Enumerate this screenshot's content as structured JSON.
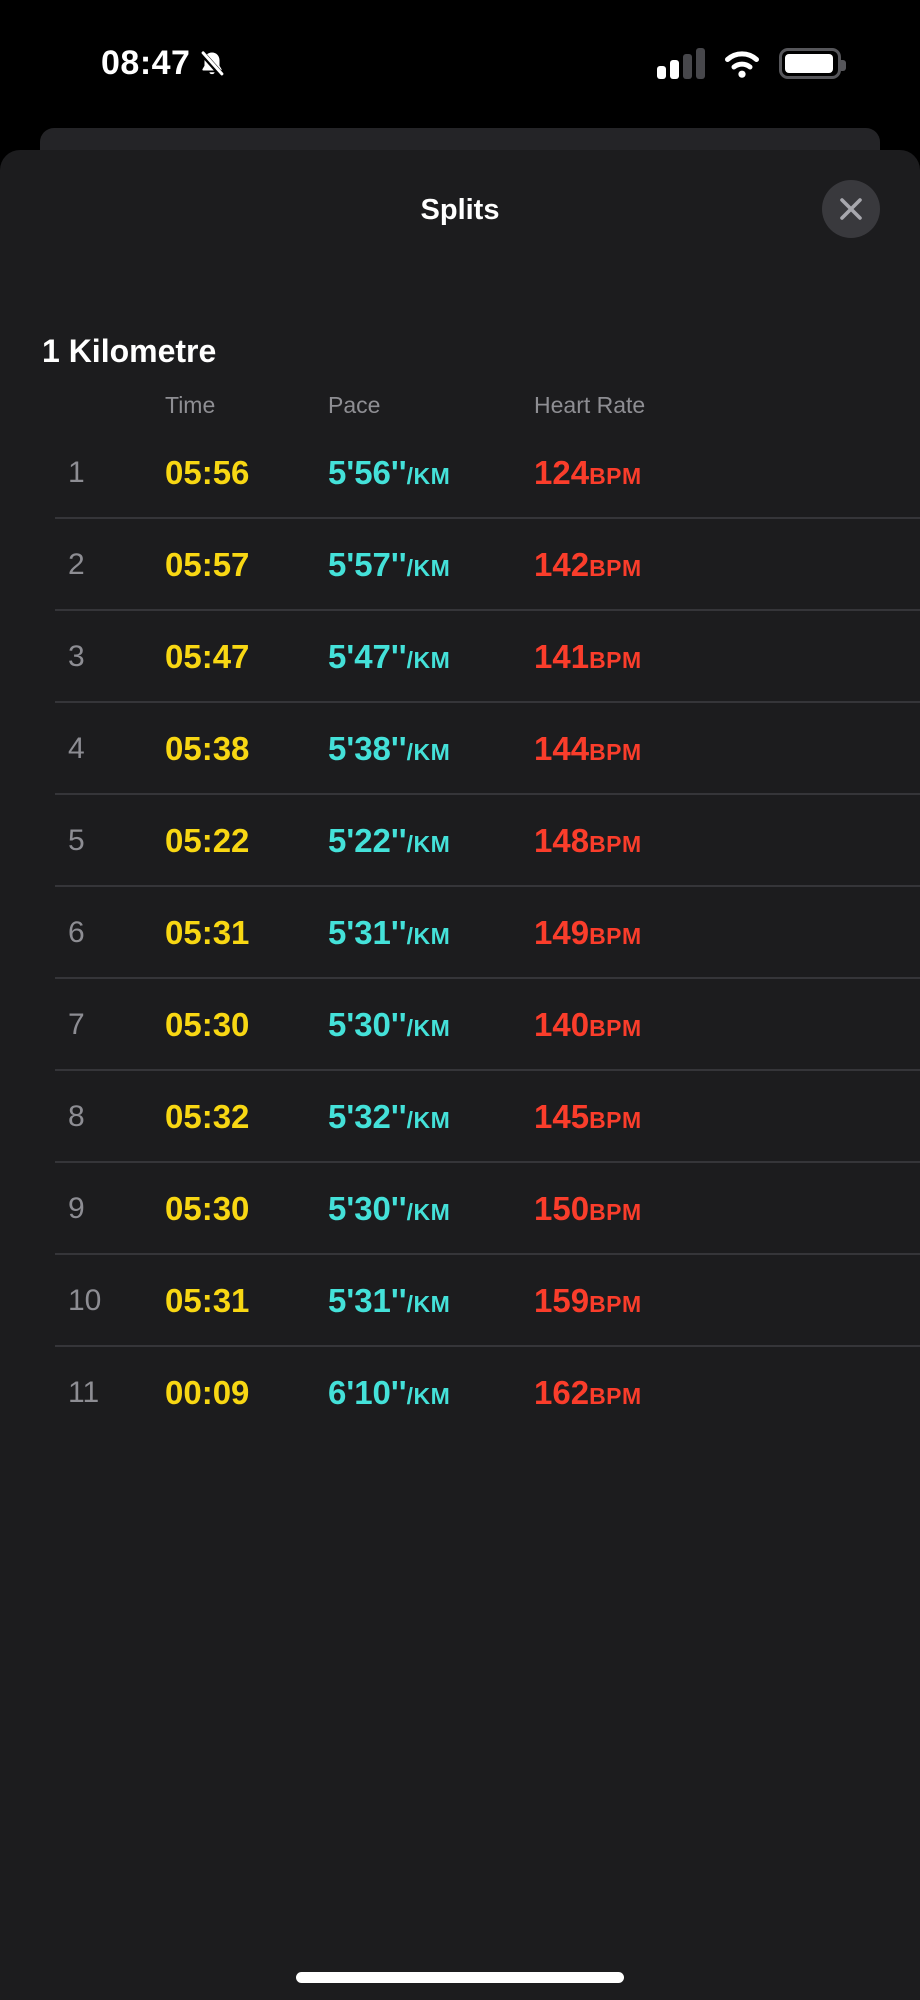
{
  "status_bar": {
    "time": "08:47",
    "notifications_silenced": true,
    "cellular_bars_filled": 2,
    "cellular_bars_total": 4,
    "wifi_strength": "full",
    "battery_fill_ratio": 0.86
  },
  "sheet": {
    "title": "Splits",
    "section_title": "1 Kilometre",
    "columns": [
      "Time",
      "Pace",
      "Heart Rate"
    ],
    "units": {
      "pace": "/KM",
      "heart_rate": "BPM"
    },
    "splits": [
      {
        "index": "1",
        "time": "05:56",
        "pace": "5'56''",
        "heart_rate": "124"
      },
      {
        "index": "2",
        "time": "05:57",
        "pace": "5'57''",
        "heart_rate": "142"
      },
      {
        "index": "3",
        "time": "05:47",
        "pace": "5'47''",
        "heart_rate": "141"
      },
      {
        "index": "4",
        "time": "05:38",
        "pace": "5'38''",
        "heart_rate": "144"
      },
      {
        "index": "5",
        "time": "05:22",
        "pace": "5'22''",
        "heart_rate": "148"
      },
      {
        "index": "6",
        "time": "05:31",
        "pace": "5'31''",
        "heart_rate": "149"
      },
      {
        "index": "7",
        "time": "05:30",
        "pace": "5'30''",
        "heart_rate": "140"
      },
      {
        "index": "8",
        "time": "05:32",
        "pace": "5'32''",
        "heart_rate": "145"
      },
      {
        "index": "9",
        "time": "05:30",
        "pace": "5'30''",
        "heart_rate": "150"
      },
      {
        "index": "10",
        "time": "05:31",
        "pace": "5'31''",
        "heart_rate": "159"
      },
      {
        "index": "11",
        "time": "00:09",
        "pace": "6'10''",
        "heart_rate": "162"
      }
    ]
  },
  "colors": {
    "background": "#000000",
    "sheet_background": "#1c1c1e",
    "behind_card": "#242427",
    "divider": "#353539",
    "header_gray": "#8e8e93",
    "index_gray": "#8d8d93",
    "time_yellow": "#f8d713",
    "pace_cyan": "#44e1d9",
    "heart_rate_red": "#fa3d2b"
  }
}
